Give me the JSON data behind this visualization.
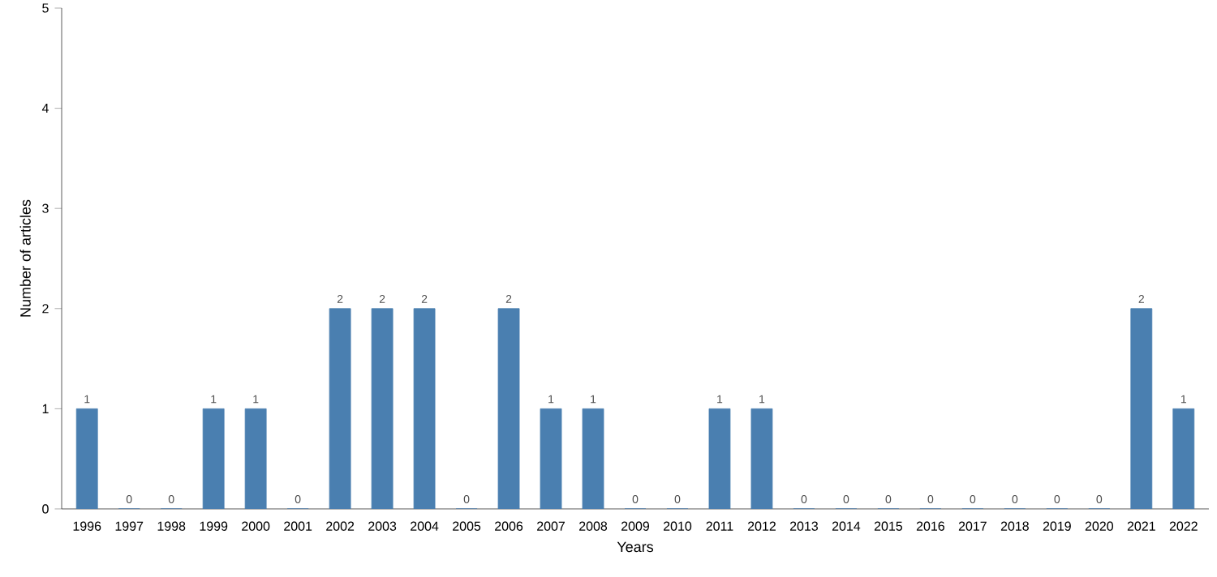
{
  "chart_data": {
    "type": "bar",
    "xlabel": "Years",
    "ylabel": "Number of articles",
    "categories": [
      "1996",
      "1997",
      "1998",
      "1999",
      "2000",
      "2001",
      "2002",
      "2003",
      "2004",
      "2005",
      "2006",
      "2007",
      "2008",
      "2009",
      "2010",
      "2011",
      "2012",
      "2013",
      "2014",
      "2015",
      "2016",
      "2017",
      "2018",
      "2019",
      "2020",
      "2021",
      "2022"
    ],
    "values": [
      1,
      0,
      0,
      1,
      1,
      0,
      2,
      2,
      2,
      0,
      2,
      1,
      1,
      0,
      0,
      1,
      1,
      0,
      0,
      0,
      0,
      0,
      0,
      0,
      0,
      2,
      1
    ],
    "color": "#4a7fb0",
    "ylim": [
      0,
      5
    ],
    "yticks": [
      0,
      1,
      2,
      3,
      4,
      5
    ],
    "grid": false,
    "data_labels": true
  }
}
